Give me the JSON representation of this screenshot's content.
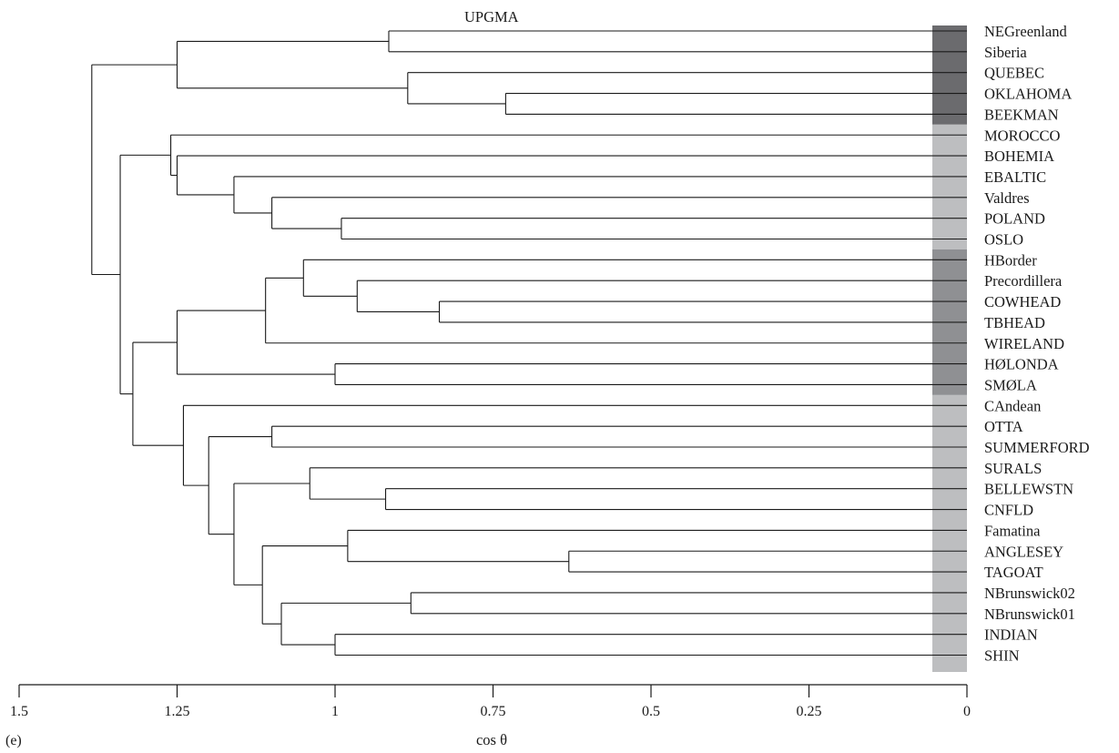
{
  "title": "UPGMA",
  "panel_label": "(e)",
  "axis": {
    "label": "cos θ",
    "ticks": [
      {
        "value": 1.5,
        "label": "1.5"
      },
      {
        "value": 1.25,
        "label": "1.25"
      },
      {
        "value": 1.0,
        "label": "1"
      },
      {
        "value": 0.75,
        "label": "0.75"
      },
      {
        "value": 0.5,
        "label": "0.5"
      },
      {
        "value": 0.25,
        "label": "0.25"
      },
      {
        "value": 0.0,
        "label": "0"
      }
    ]
  },
  "leaves": [
    "NEGreenland",
    "Siberia",
    "QUEBEC",
    "OKLAHOMA",
    "BEEKMAN",
    "MOROCCO",
    "BOHEMIA",
    "EBALTIC",
    "Valdres",
    "POLAND",
    "OSLO",
    "HBorder",
    "Precordillera",
    "COWHEAD",
    "TBHEAD",
    "WIRELAND",
    "HØLONDA",
    "SMØLA",
    "CAndean",
    "OTTA",
    "SUMMERFORD",
    "SURALS",
    "BELLEWSTN",
    "CNFLD",
    "Famatina",
    "ANGLESEY",
    "TAGOAT",
    "NBrunswick02",
    "NBrunswick01",
    "INDIAN",
    "SHIN"
  ],
  "groups": [
    {
      "from": 0,
      "to": 4,
      "color": "#6b6b6e"
    },
    {
      "from": 5,
      "to": 10,
      "color": "#bdbec0"
    },
    {
      "from": 11,
      "to": 17,
      "color": "#8f9093"
    },
    {
      "from": 18,
      "to": 30,
      "color": "#bdbec0"
    }
  ],
  "tree": {
    "h": 1.385,
    "c": [
      {
        "h": 1.25,
        "c": [
          {
            "h": 0.915,
            "c": [
              0,
              1
            ]
          },
          {
            "h": 0.885,
            "c": [
              2,
              {
                "h": 0.73,
                "c": [
                  3,
                  4
                ]
              }
            ]
          }
        ]
      },
      {
        "h": 1.34,
        "c": [
          {
            "h": 1.26,
            "c": [
              5,
              {
                "h": 1.25,
                "c": [
                  6,
                  {
                    "h": 1.16,
                    "c": [
                      7,
                      {
                        "h": 1.1,
                        "c": [
                          8,
                          {
                            "h": 0.99,
                            "c": [
                              9,
                              10
                            ]
                          }
                        ]
                      }
                    ]
                  }
                ]
              }
            ]
          },
          {
            "h": 1.32,
            "c": [
              {
                "h": 1.25,
                "c": [
                  {
                    "h": 1.11,
                    "c": [
                      {
                        "h": 1.05,
                        "c": [
                          11,
                          {
                            "h": 0.965,
                            "c": [
                              12,
                              {
                                "h": 0.835,
                                "c": [
                                  13,
                                  14
                                ]
                              }
                            ]
                          }
                        ]
                      },
                      15
                    ]
                  },
                  {
                    "h": 1.0,
                    "c": [
                      16,
                      17
                    ]
                  }
                ]
              },
              {
                "h": 1.24,
                "c": [
                  18,
                  {
                    "h": 1.2,
                    "c": [
                      {
                        "h": 1.1,
                        "c": [
                          19,
                          20
                        ]
                      },
                      {
                        "h": 1.16,
                        "c": [
                          {
                            "h": 1.04,
                            "c": [
                              21,
                              {
                                "h": 0.92,
                                "c": [
                                  22,
                                  23
                                ]
                              }
                            ]
                          },
                          {
                            "h": 1.115,
                            "c": [
                              {
                                "h": 0.98,
                                "c": [
                                  24,
                                  {
                                    "h": 0.63,
                                    "c": [
                                      25,
                                      26
                                    ]
                                  }
                                ]
                              },
                              {
                                "h": 1.085,
                                "c": [
                                  {
                                    "h": 0.88,
                                    "c": [
                                      27,
                                      28
                                    ]
                                  },
                                  {
                                    "h": 1.0,
                                    "c": [
                                      29,
                                      30
                                    ]
                                  }
                                ]
                              }
                            ]
                          }
                        ]
                      }
                    ]
                  }
                ]
              }
            ]
          }
        ]
      }
    ]
  }
}
